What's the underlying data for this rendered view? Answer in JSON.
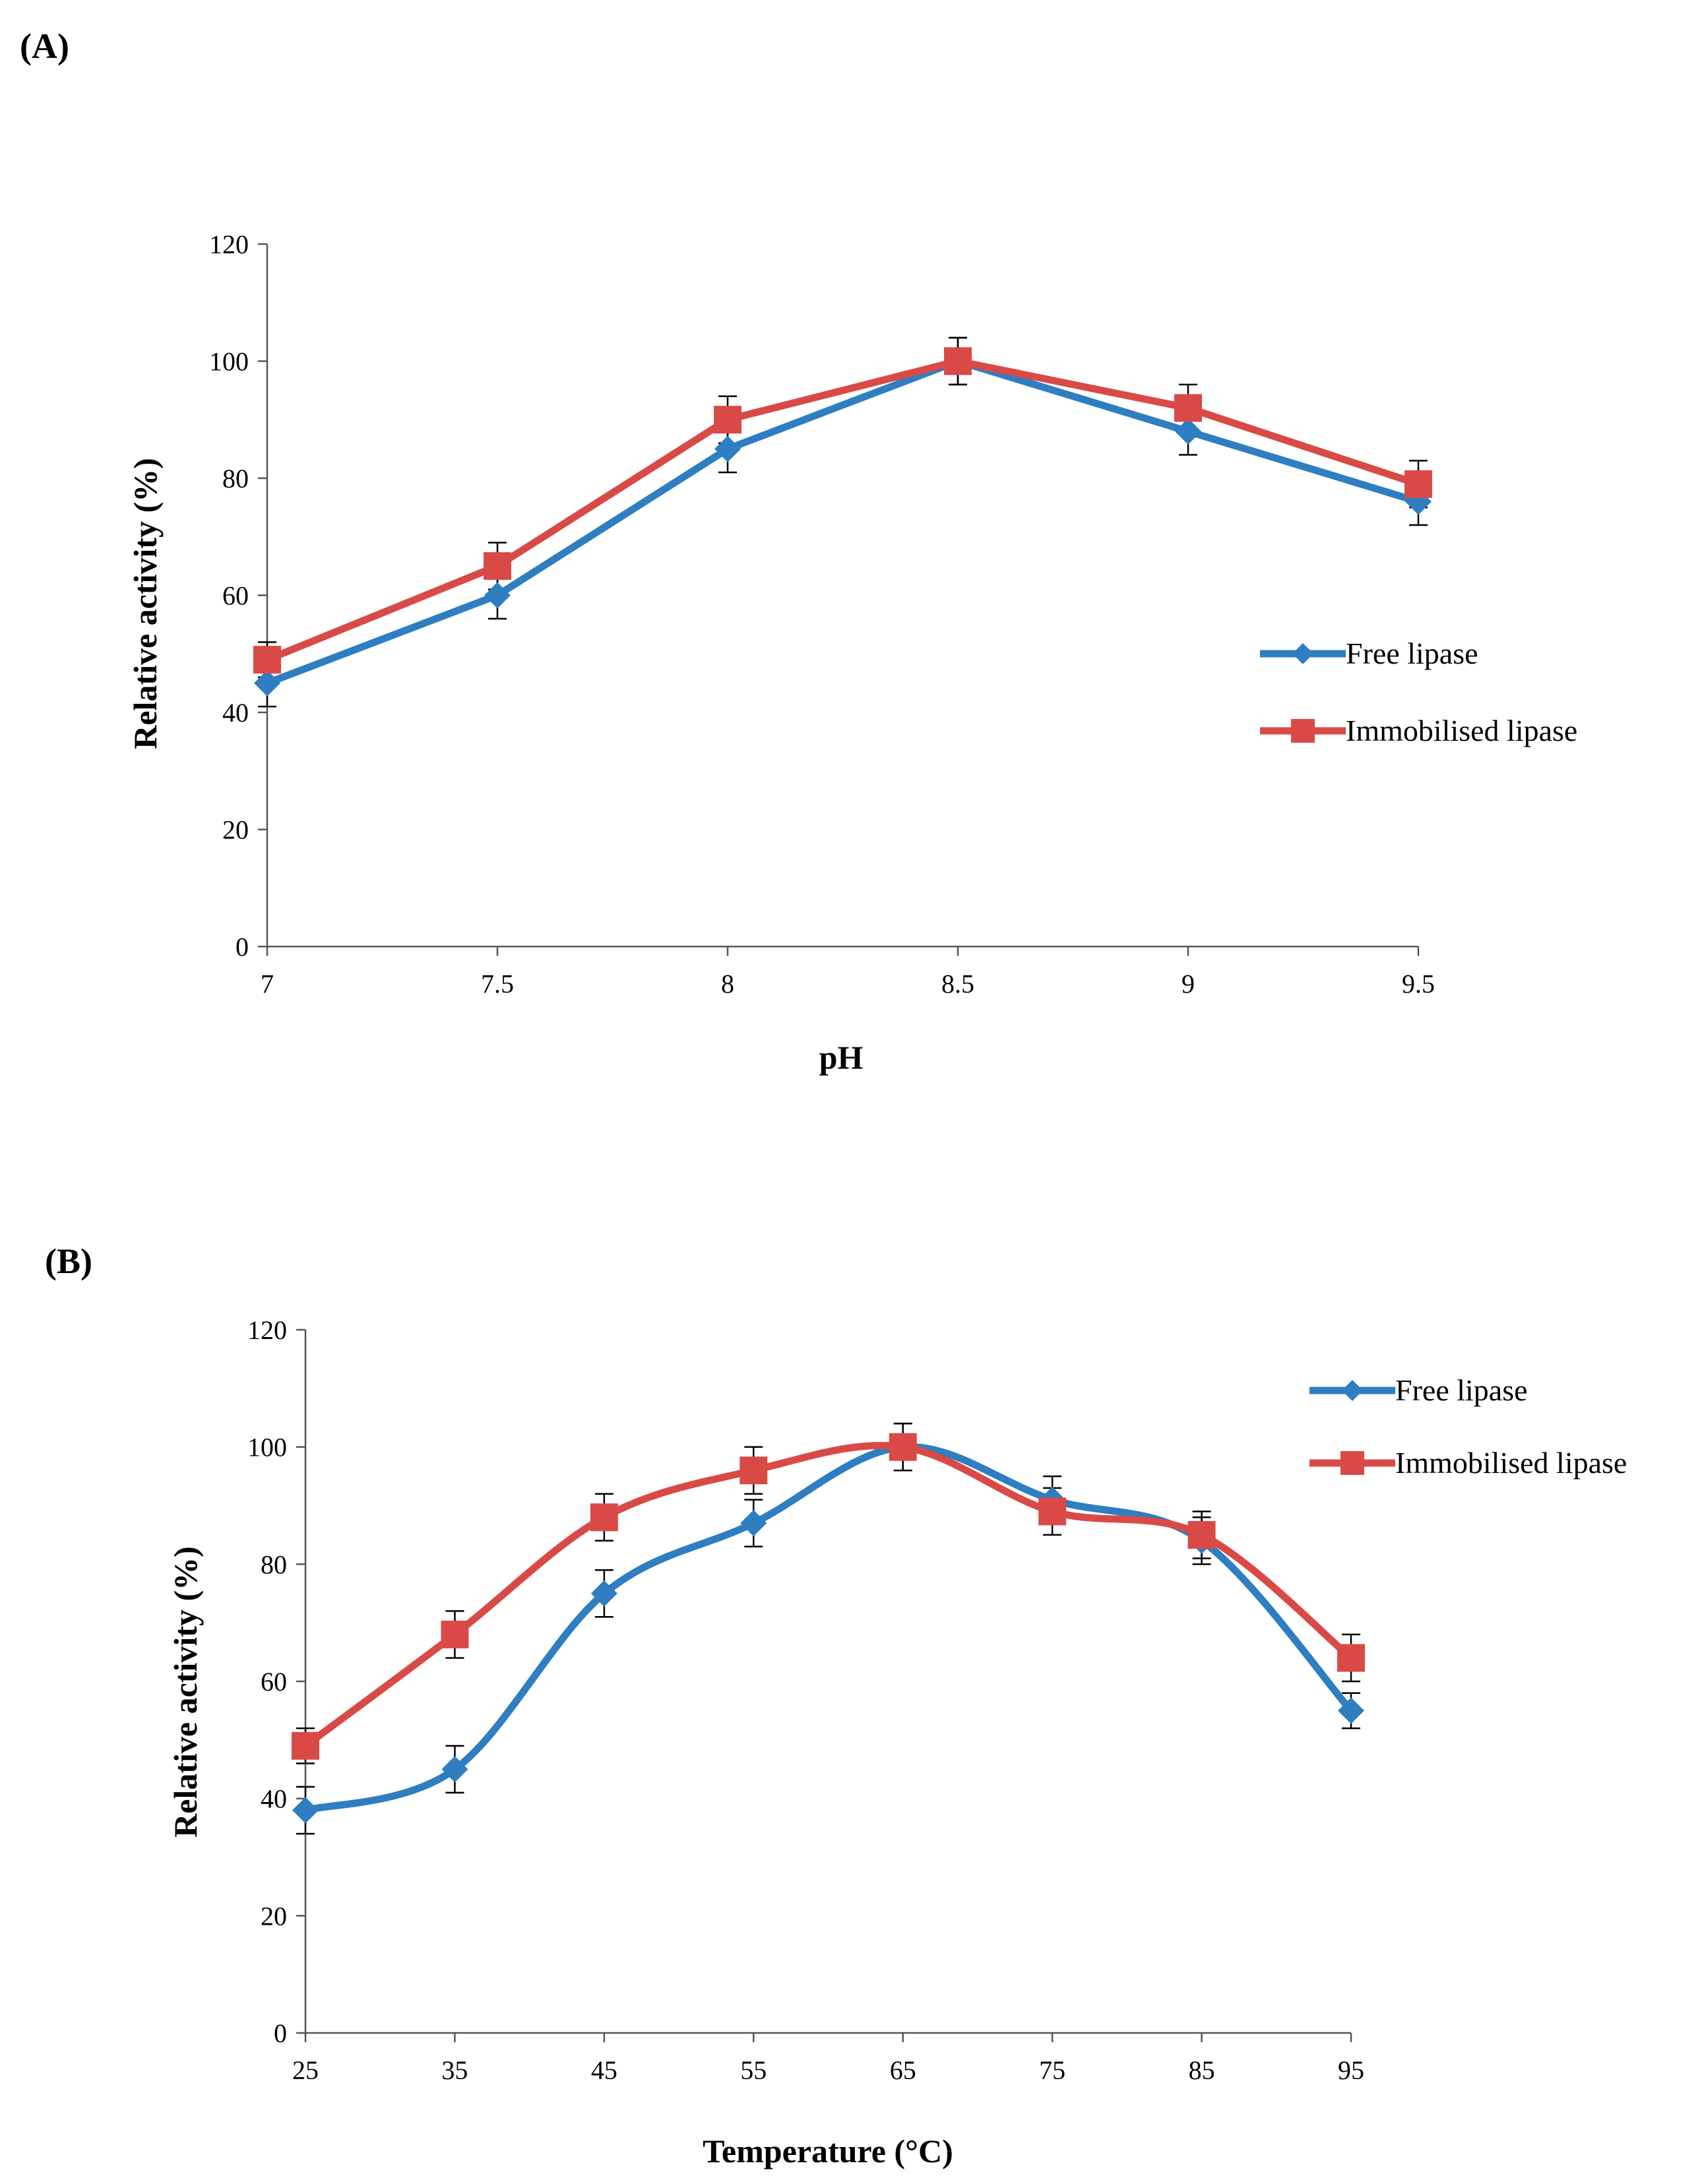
{
  "chart_data": [
    {
      "panel": "(A)",
      "type": "line",
      "title": "",
      "xlabel": "pH",
      "ylabel": "Relative activity (%)",
      "x": [
        7,
        7.5,
        8,
        8.5,
        9,
        9.5
      ],
      "x_tick_labels": [
        "7",
        "7.5",
        "8",
        "8.5",
        "9",
        "9.5"
      ],
      "xlim": [
        7,
        9.5
      ],
      "ylim": [
        0,
        120
      ],
      "y_ticks": [
        0,
        20,
        40,
        60,
        80,
        100,
        120
      ],
      "smooth": false,
      "grid": false,
      "legend_position": "right",
      "series": [
        {
          "name": "Free lipase",
          "marker": "diamond",
          "color": "#2E7EC1",
          "values": [
            45,
            60,
            85,
            100,
            88,
            76
          ],
          "errors": [
            4,
            4,
            4,
            4,
            4,
            4
          ]
        },
        {
          "name": "Immobilised lipase",
          "marker": "square",
          "color": "#D94A47",
          "values": [
            49,
            65,
            90,
            100,
            92,
            79
          ],
          "errors": [
            3,
            4,
            4,
            4,
            4,
            4
          ]
        }
      ]
    },
    {
      "panel": "(B)",
      "type": "line",
      "title": "",
      "xlabel": "Temperature (°C)",
      "ylabel": "Relative activity (%)",
      "x": [
        25,
        35,
        45,
        55,
        65,
        75,
        85,
        95
      ],
      "x_tick_labels": [
        "25",
        "35",
        "45",
        "55",
        "65",
        "75",
        "85",
        "95"
      ],
      "xlim": [
        25,
        95
      ],
      "ylim": [
        0,
        120
      ],
      "y_ticks": [
        0,
        20,
        40,
        60,
        80,
        100,
        120
      ],
      "smooth": true,
      "grid": false,
      "legend_position": "top-right",
      "series": [
        {
          "name": "Free lipase",
          "marker": "diamond",
          "color": "#2E7EC1",
          "values": [
            38,
            45,
            75,
            87,
            100,
            91,
            84,
            55
          ],
          "errors": [
            4,
            4,
            4,
            4,
            4,
            4,
            4,
            3
          ]
        },
        {
          "name": "Immobilised lipase",
          "marker": "square",
          "color": "#D94A47",
          "values": [
            49,
            68,
            88,
            96,
            100,
            89,
            85,
            64
          ],
          "errors": [
            3,
            4,
            4,
            4,
            4,
            4,
            4,
            4
          ]
        }
      ]
    }
  ]
}
